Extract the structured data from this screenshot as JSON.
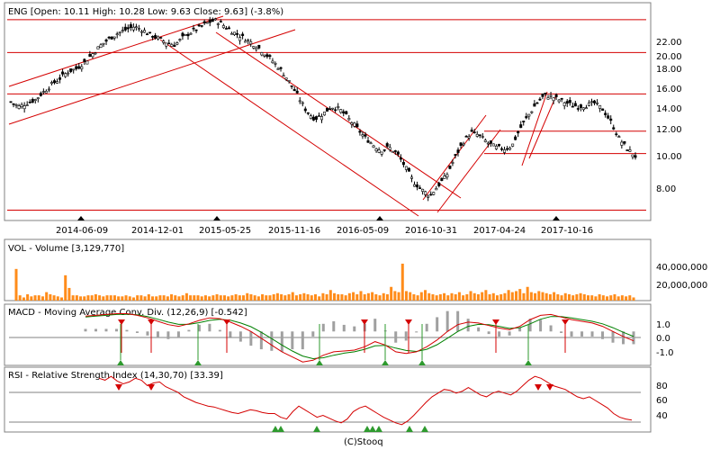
{
  "chart_data": [
    {
      "type": "candlestick",
      "title": "ENG [Open: 10.11  High: 10.28  Low: 9.63  Close: 9.63]  (-3.8%)",
      "x_tick_labels": [
        "2014-06-09",
        "2014-12-01",
        "2015-05-25",
        "2015-11-16",
        "2016-05-09",
        "2016-10-31",
        "2017-04-24",
        "2017-10-16"
      ],
      "y_tick_labels": [
        "8.00",
        "10.00",
        "12.00",
        "14.00",
        "16.00",
        "18.00",
        "20.00",
        "22.00"
      ],
      "y_ticks": [
        8,
        10,
        12,
        14,
        16,
        18,
        20,
        22
      ],
      "y_scale": "log",
      "ylim": [
        6.6,
        24.5
      ],
      "grid": false,
      "close_series": [
        13.6,
        13.2,
        13.5,
        13.8,
        14.5,
        15.2,
        15.8,
        16.5,
        16.8,
        17.5,
        18.5,
        19.5,
        20.3,
        21.0,
        21.5,
        21.9,
        21.5,
        20.8,
        20.3,
        19.8,
        19.5,
        20.5,
        21.2,
        21.8,
        22.5,
        22.8,
        22.0,
        21.2,
        20.6,
        20.0,
        19.3,
        18.4,
        17.5,
        16.5,
        15.3,
        14.0,
        12.8,
        12.2,
        12.6,
        13.2,
        13.0,
        12.3,
        11.6,
        10.9,
        10.4,
        10.0,
        10.2,
        9.8,
        9.0,
        8.2,
        7.8,
        7.5,
        8.0,
        8.5,
        9.5,
        10.5,
        11.2,
        11.0,
        10.5,
        10.2,
        10.1,
        10.3,
        11.5,
        12.5,
        13.5,
        14.2,
        14.0,
        13.7,
        13.4,
        13.2,
        13.3,
        13.5,
        13.0,
        12.0,
        10.8,
        10.1,
        9.63
      ],
      "horizontal_levels": [
        22.9,
        18.6,
        14.3,
        11.3,
        9.8,
        6.85
      ]
    },
    {
      "type": "bar",
      "title": "VOL - Volume [3,129,770]",
      "y_tick_labels": [
        "20,000,000",
        "40,000,000"
      ],
      "y_ticks": [
        20000000,
        40000000
      ],
      "ylim": [
        0,
        58000000
      ],
      "values": [
        30,
        5,
        3,
        6,
        4,
        5,
        5,
        4,
        8,
        6,
        5,
        4,
        3,
        24,
        12,
        5,
        5,
        4,
        4,
        5,
        5,
        6,
        5,
        4,
        5,
        5,
        5,
        4,
        4,
        5,
        4,
        3,
        5,
        5,
        4,
        6,
        4,
        4,
        5,
        5,
        4,
        6,
        5,
        4,
        5,
        7,
        5,
        5,
        5,
        4,
        5,
        4,
        5,
        6,
        5,
        5,
        4,
        5,
        6,
        5,
        5,
        7,
        6,
        5,
        4,
        6,
        5,
        5,
        6,
        7,
        6,
        5,
        6,
        8,
        5,
        6,
        7,
        6,
        5,
        6,
        4,
        7,
        6,
        10,
        7,
        6,
        6,
        5,
        7,
        8,
        6,
        9,
        6,
        7,
        8,
        6,
        5,
        7,
        6,
        13,
        9,
        8,
        35,
        9,
        8,
        6,
        5,
        8,
        10,
        7,
        6,
        5,
        6,
        7,
        5,
        7,
        6,
        8,
        5,
        6,
        9,
        7,
        6,
        8,
        10,
        6,
        7,
        5,
        6,
        7,
        10,
        8,
        9,
        11,
        7,
        13,
        8,
        7,
        9,
        8,
        7,
        6,
        8,
        6,
        5,
        7,
        6,
        5,
        6,
        7,
        6,
        5,
        5,
        4,
        6,
        5,
        4,
        5,
        6,
        4,
        5,
        4,
        5,
        3
      ]
    },
    {
      "type": "line",
      "title": "MACD - Moving Average Conv. Div. (12,26,9) [-0.542]",
      "y_tick_labels": [
        "1.0",
        "0.0",
        "-1.0"
      ],
      "y_ticks": [
        1,
        0,
        -1
      ],
      "ylim": [
        -2.0,
        1.5
      ],
      "series": [
        {
          "values": [
            0.9,
            0.95,
            1.0,
            1.05,
            1.05,
            0.95,
            0.8,
            0.6,
            0.4,
            0.3,
            0.45,
            0.65,
            0.8,
            0.75,
            0.55,
            0.3,
            0.0,
            -0.4,
            -0.8,
            -1.2,
            -1.5,
            -1.8,
            -1.7,
            -1.4,
            -1.2,
            -1.15,
            -1.1,
            -0.9,
            -0.6,
            -0.8,
            -1.2,
            -1.3,
            -1.2,
            -0.9,
            -0.5,
            0.0,
            0.4,
            0.55,
            0.5,
            0.35,
            0.2,
            0.1,
            0.3,
            0.7,
            0.95,
            1.0,
            0.85,
            0.7,
            0.6,
            0.5,
            0.3,
            0.0,
            -0.3,
            -0.55
          ]
        },
        {
          "values": [
            0.85,
            0.9,
            0.95,
            1.0,
            1.02,
            0.98,
            0.88,
            0.72,
            0.55,
            0.42,
            0.42,
            0.52,
            0.65,
            0.72,
            0.66,
            0.5,
            0.28,
            -0.05,
            -0.42,
            -0.8,
            -1.15,
            -1.45,
            -1.6,
            -1.55,
            -1.4,
            -1.28,
            -1.2,
            -1.05,
            -0.85,
            -0.82,
            -0.98,
            -1.12,
            -1.18,
            -1.05,
            -0.78,
            -0.4,
            0.0,
            0.3,
            0.42,
            0.4,
            0.3,
            0.18,
            0.22,
            0.45,
            0.72,
            0.88,
            0.88,
            0.8,
            0.7,
            0.6,
            0.45,
            0.22,
            -0.05,
            -0.3
          ]
        }
      ]
    },
    {
      "type": "line",
      "title": "RSI - Relative Strength Index (14,30,70) [33.39]",
      "y_tick_labels": [
        "80",
        "60",
        "40"
      ],
      "y_ticks": [
        80,
        60,
        40
      ],
      "ylim": [
        22,
        88
      ],
      "series": [
        {
          "values": [
            78,
            76,
            80,
            75,
            72,
            74,
            78,
            76,
            70,
            73,
            74,
            69,
            66,
            63,
            58,
            55,
            52,
            50,
            48,
            47,
            45,
            43,
            41,
            40,
            42,
            44,
            43,
            41,
            40,
            40,
            36,
            34,
            42,
            48,
            44,
            40,
            36,
            38,
            35,
            32,
            30,
            34,
            42,
            46,
            48,
            44,
            40,
            36,
            33,
            30,
            28,
            32,
            38,
            45,
            52,
            58,
            62,
            66,
            65,
            62,
            64,
            68,
            64,
            60,
            58,
            62,
            64,
            62,
            60,
            64,
            70,
            76,
            80,
            78,
            74,
            70,
            68,
            66,
            62,
            58,
            56,
            58,
            54,
            50,
            46,
            40,
            36,
            34,
            33
          ]
        }
      ]
    }
  ],
  "footer": "(C)Stooq",
  "colors": {
    "line": "#d40000",
    "signal": "#008000",
    "bar": "#ff8c1a",
    "hist": "#a0a0a0",
    "frame": "#808080",
    "marker_red": "#d40000",
    "marker_green": "#2e9a2e"
  }
}
